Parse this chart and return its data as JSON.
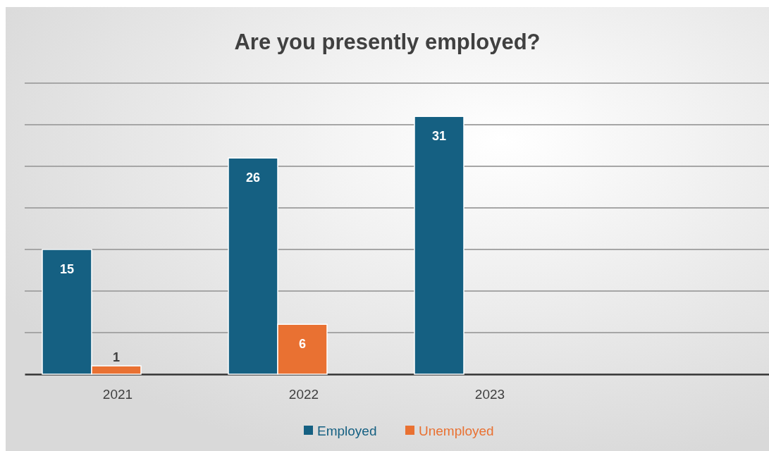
{
  "chart_data": {
    "type": "bar",
    "title": "Are you presently employed?",
    "categories": [
      "2021",
      "2022",
      "2023",
      null
    ],
    "series": [
      {
        "name": "Employed",
        "color": "#156082",
        "values": [
          15,
          26,
          31,
          null
        ]
      },
      {
        "name": "Unemployed",
        "color": "#e97132",
        "values": [
          1,
          6,
          null,
          null
        ]
      }
    ],
    "ylim": [
      0,
      35
    ],
    "yticks": [
      {
        "value": 0,
        "label": null
      },
      {
        "value": 5,
        "label": null
      },
      {
        "value": 10,
        "label": null
      },
      {
        "value": 15,
        "label": null
      },
      {
        "value": 20,
        "label": null
      },
      {
        "value": 25,
        "label": null
      },
      {
        "value": 30,
        "label": null
      },
      {
        "value": 35,
        "label": null
      }
    ],
    "tick_labels": "x",
    "grid": "y",
    "legend": "bottom",
    "data_labels": true
  }
}
